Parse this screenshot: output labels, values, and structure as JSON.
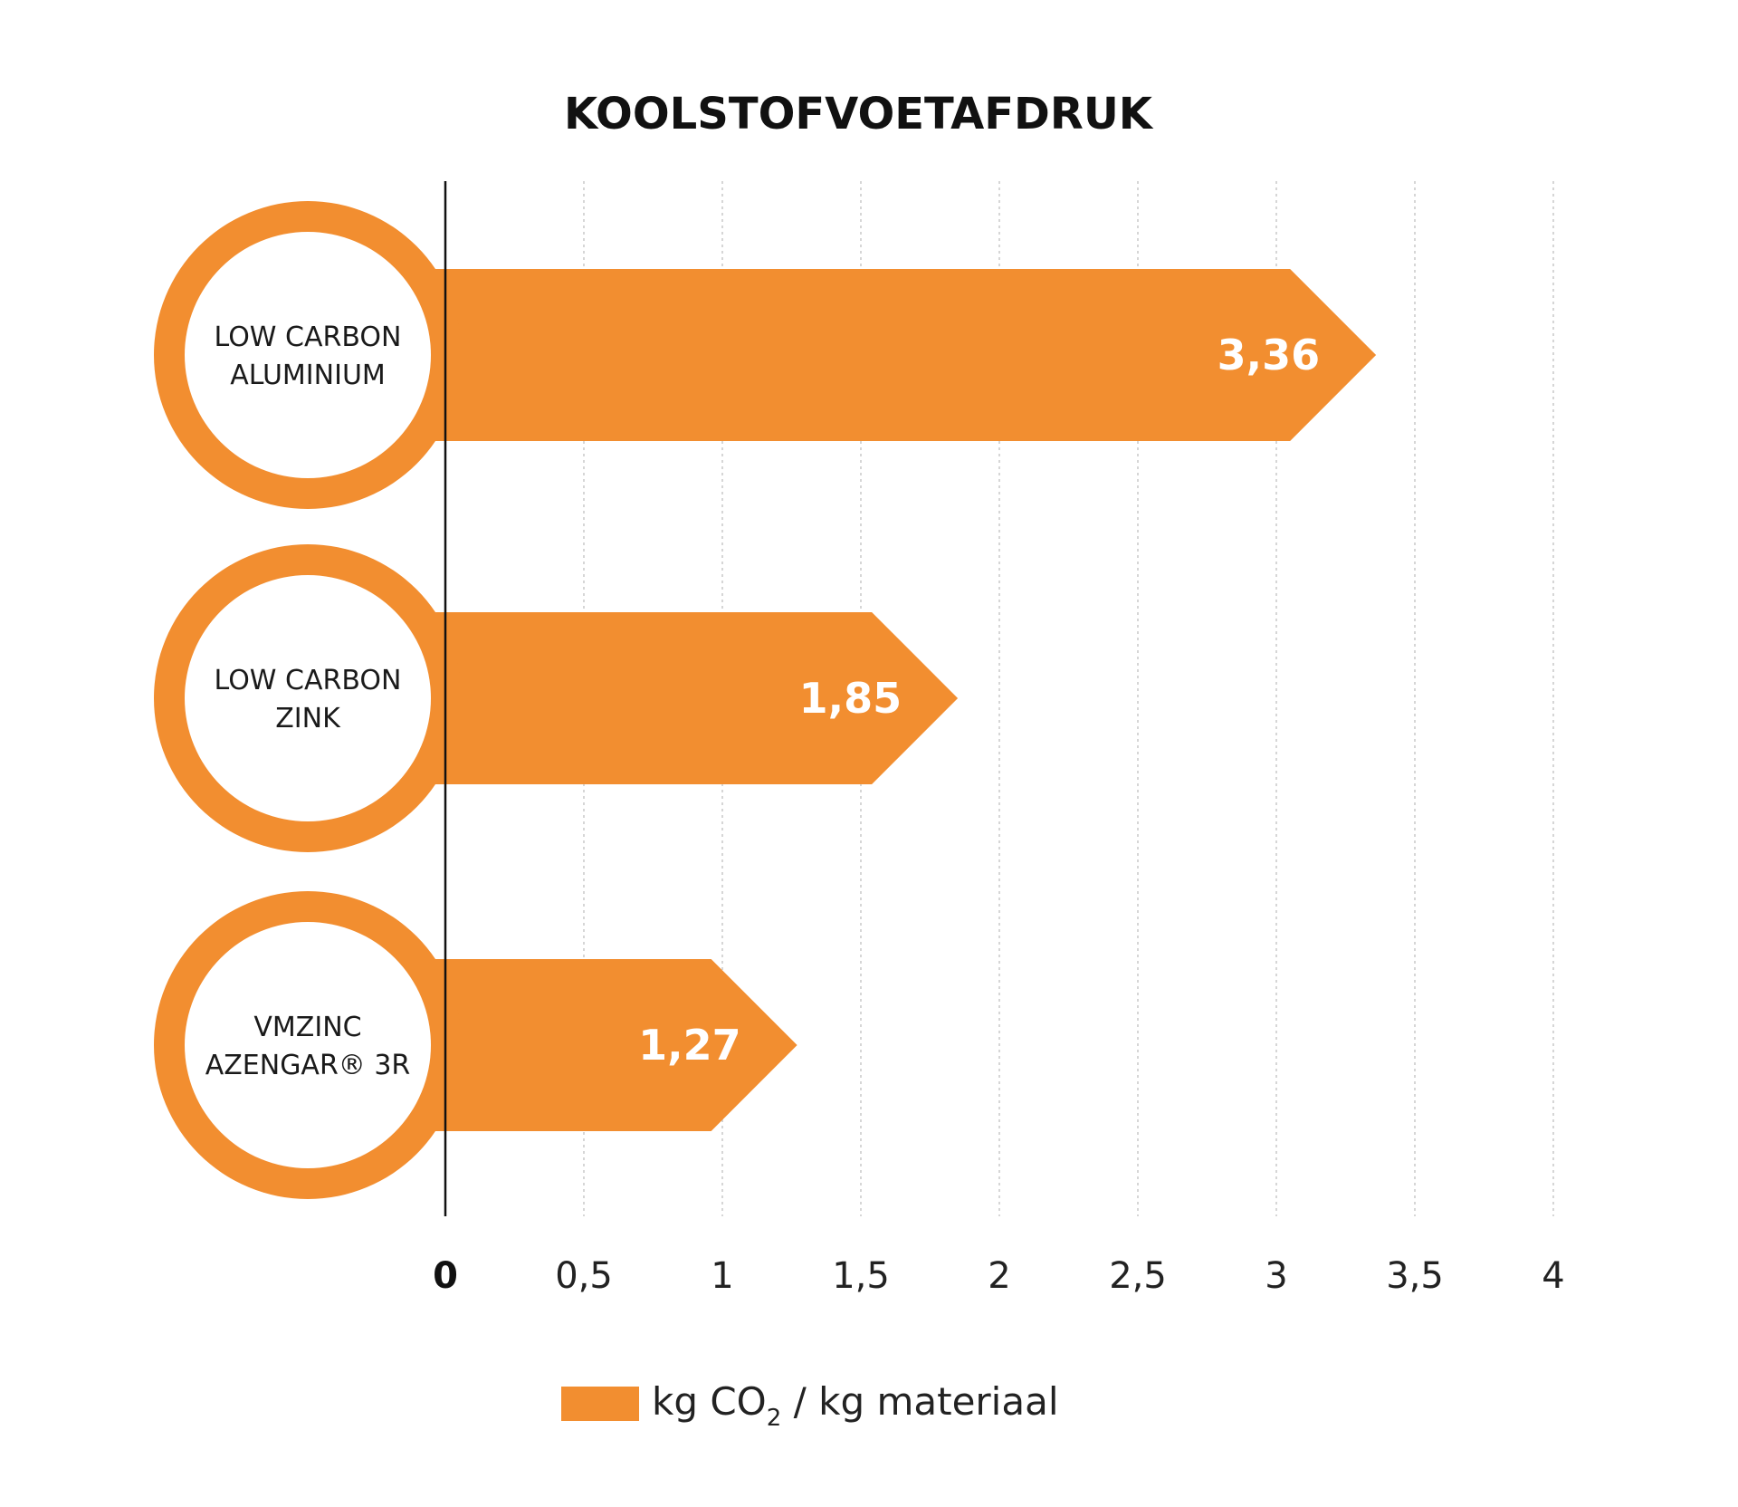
{
  "chart_data": {
    "type": "bar",
    "orientation": "horizontal",
    "title": "KOOLSTOFVOETAFDRUK",
    "categories": [
      {
        "line1": "LOW CARBON",
        "line2": "ALUMINIUM"
      },
      {
        "line1": "LOW CARBON",
        "line2": "ZINK"
      },
      {
        "line1": "VMZINC",
        "line2": "AZENGAR® 3R"
      }
    ],
    "values": [
      3.36,
      1.85,
      1.27
    ],
    "value_labels": [
      "3,36",
      "1,85",
      "1,27"
    ],
    "x_ticks": [
      0,
      0.5,
      1,
      1.5,
      2,
      2.5,
      3,
      3.5,
      4
    ],
    "x_tick_labels": [
      "0",
      "0,5",
      "1",
      "1,5",
      "2",
      "2,5",
      "3",
      "3,5",
      "4"
    ],
    "xlim": [
      0,
      4
    ],
    "grid": "vertical dotted",
    "legend": {
      "placement": "bottom-center",
      "prefix": "kg CO",
      "subscript": "2",
      "suffix": " / kg materiaal"
    },
    "colors": {
      "bar": "#f28e30",
      "circle_fill": "#ffffff",
      "axis": "#111111",
      "grid": "#c8c8c8"
    }
  }
}
